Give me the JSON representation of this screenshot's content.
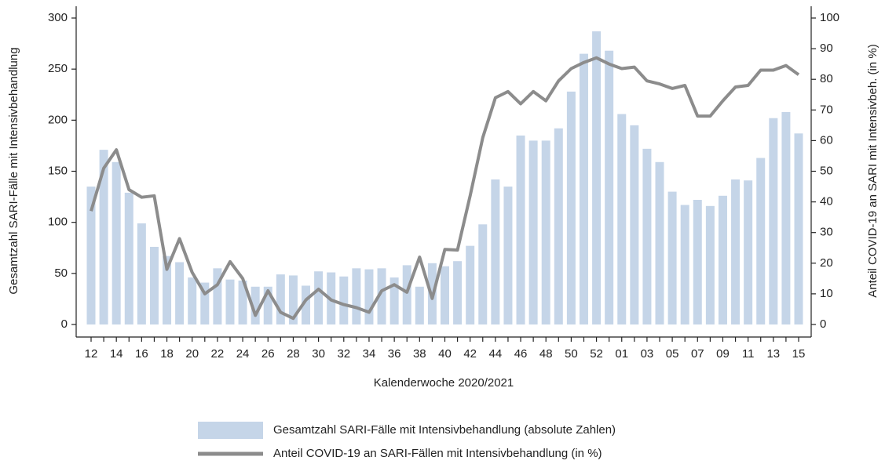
{
  "chart_data": {
    "type": "bar-line",
    "x_label": "Kalenderwoche 2020/2021",
    "y_label": "Gesamtzahl SARI-Fälle mit Intensivbehandlung",
    "y2_label": "Anteil COVID-19 an SARI mit Intensivbeh. (in %)",
    "categories": [
      "12",
      null,
      "14",
      null,
      "16",
      null,
      "18",
      null,
      "20",
      null,
      "22",
      null,
      "24",
      null,
      "26",
      null,
      "28",
      null,
      "30",
      null,
      "32",
      null,
      "34",
      null,
      "36",
      null,
      "38",
      null,
      "40",
      null,
      "42",
      null,
      "44",
      null,
      "46",
      null,
      "48",
      null,
      "50",
      null,
      "52",
      null,
      "01",
      null,
      "03",
      null,
      "05",
      null,
      "07",
      null,
      "09",
      null,
      "11",
      null,
      "13",
      null,
      "15"
    ],
    "ylim": [
      0,
      300
    ],
    "yticks": [
      0,
      50,
      100,
      150,
      200,
      250,
      300
    ],
    "y2lim": [
      0,
      100
    ],
    "y2ticks": [
      0,
      10,
      20,
      30,
      40,
      50,
      60,
      70,
      80,
      90,
      100
    ],
    "legend": "bottom",
    "series": [
      {
        "name": "Gesamtzahl SARI-Fälle mit Intensivbehandlung (absolute Zahlen)",
        "type": "bar",
        "color": "#c5d5e8",
        "values": [
          135,
          171,
          159,
          129,
          99,
          76,
          67,
          61,
          46,
          41,
          55,
          44,
          43,
          37,
          37,
          49,
          48,
          38,
          52,
          51,
          47,
          55,
          54,
          55,
          46,
          58,
          37,
          60,
          57,
          62,
          77,
          98,
          142,
          135,
          185,
          180,
          180,
          192,
          228,
          265,
          287,
          268,
          206,
          195,
          172,
          159,
          130,
          117,
          122,
          116,
          126,
          142,
          141,
          163,
          202,
          208,
          187
        ]
      },
      {
        "name": "Anteil COVID-19 an SARI-Fällen mit Intensivbehandlung (in %)",
        "type": "line",
        "color": "#8c8c8c",
        "axis": "y2",
        "values": [
          37,
          51,
          57,
          44,
          41.5,
          42,
          18,
          28,
          17,
          10,
          13,
          20.5,
          15,
          3,
          11,
          4,
          2,
          8,
          11.5,
          8,
          6.5,
          5.5,
          4,
          11,
          13,
          10.5,
          22,
          8.5,
          24.5,
          24.3,
          42,
          61,
          74,
          76,
          72,
          76,
          73,
          79.5,
          83.5,
          85.5,
          87,
          85,
          83.5,
          84,
          79.5,
          78.5,
          77,
          78,
          68,
          68,
          73,
          77.5,
          78,
          83,
          83,
          84.5,
          81.5
        ]
      }
    ]
  }
}
